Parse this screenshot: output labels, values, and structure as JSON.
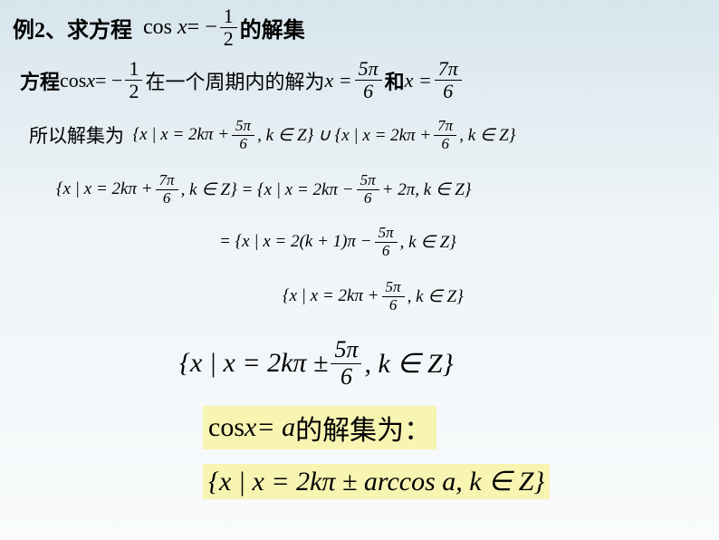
{
  "row1": {
    "prefix": "例2、求方程",
    "cos": "cos",
    "x": "x",
    "eq": " = −",
    "frac_num": "1",
    "frac_den": "2",
    "suffix": "的解集"
  },
  "row2": {
    "prefix": "方程",
    "cos": "cos",
    "x": " x",
    "eq": " = −",
    "f1n": "1",
    "f1d": "2",
    "mid1": "在一个周期内的解为",
    "x1": "x =",
    "f2n": "5π",
    "f2d": "6",
    "and": "和",
    "x2": "x =",
    "f3n": "7π",
    "f3d": "6"
  },
  "row3": {
    "prefix": "所以解集为",
    "a": "{x | x = 2kπ +",
    "f1n": "5π",
    "f1d": "6",
    "b": ", k ∈ Z} ∪ {x | x = 2kπ +",
    "f2n": "7π",
    "f2d": "6",
    "c": ", k ∈ Z}"
  },
  "row4": {
    "a": "{x | x = 2kπ +",
    "f1n": "7π",
    "f1d": "6",
    "b": ", k ∈ Z} = {x | x = 2kπ −",
    "f2n": "5π",
    "f2d": "6",
    "c": "+ 2π, k ∈ Z}"
  },
  "row5": {
    "a": "= {x | x = 2(k + 1)π −",
    "f1n": "5π",
    "f1d": "6",
    "b": ", k ∈ Z}"
  },
  "row6": {
    "a": "{x | x = 2kπ +",
    "f1n": "5π",
    "f1d": "6",
    "b": ", k ∈ Z}"
  },
  "row7": {
    "a": "{x | x = 2kπ ±",
    "f1n": "5π",
    "f1d": "6",
    "b": ", k ∈ Z}"
  },
  "row8": {
    "cos": "cos",
    "x": " x",
    "eq": " = a",
    "suffix": "的解集为："
  },
  "row9": {
    "a": "{x | x = 2kπ ± arccos a, k ∈ Z}"
  },
  "colors": {
    "bg_top": "#d8e5ed",
    "bg_bottom": "#f9fbfc",
    "highlight": "#f8f4b2",
    "text": "#000000"
  }
}
